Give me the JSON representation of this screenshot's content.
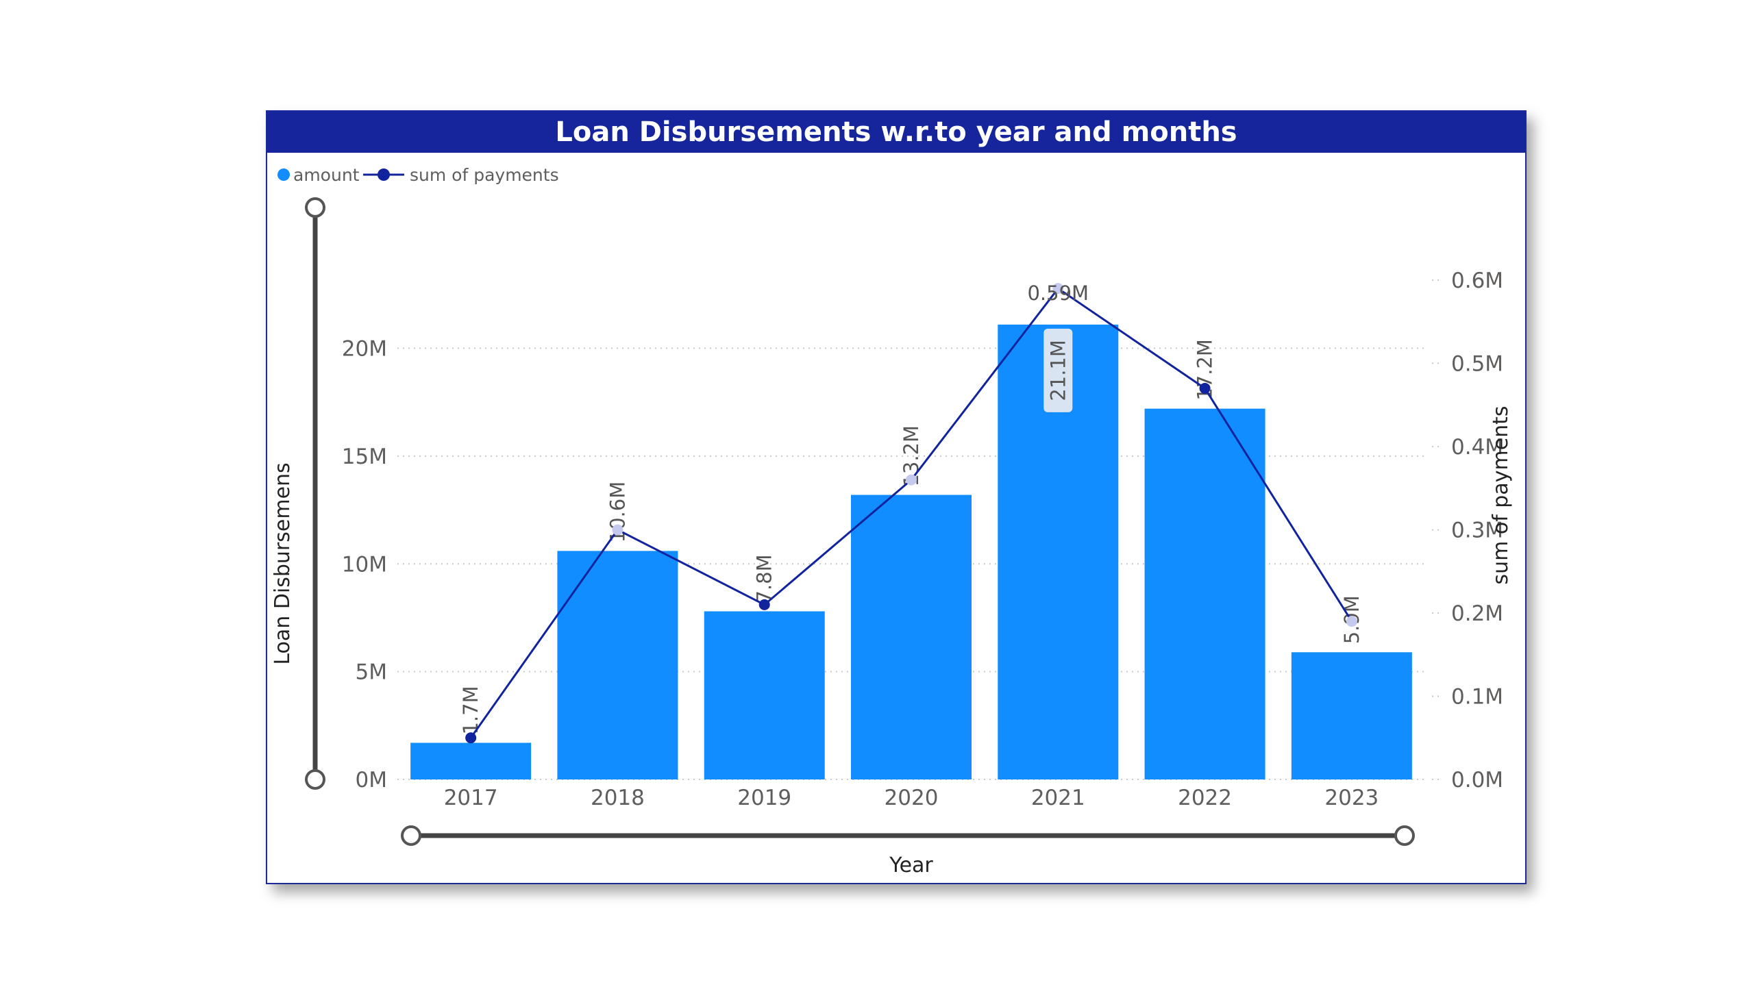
{
  "chart_data": {
    "type": "bar",
    "title": "Loan Disbursements w.r.to year and months",
    "xlabel": "Year",
    "ylabel": "Loan Disbursemens",
    "y2label": "sum of payments",
    "categories": [
      "2017",
      "2018",
      "2019",
      "2020",
      "2021",
      "2022",
      "2023"
    ],
    "series": [
      {
        "name": "amount",
        "kind": "bar",
        "axis": "left",
        "color": "#118dff",
        "values": [
          1.7,
          10.6,
          7.8,
          13.2,
          21.1,
          17.2,
          5.9
        ],
        "labels": [
          "1.7M",
          "10.6M",
          "7.8M",
          "13.2M",
          "21.1M",
          "17.2M",
          "5.9M"
        ]
      },
      {
        "name": "sum of payments",
        "kind": "line",
        "axis": "right",
        "color": "#12239e",
        "values": [
          0.05,
          0.3,
          0.21,
          0.36,
          0.59,
          0.47,
          0.19
        ],
        "labels": [
          "",
          "",
          "",
          "",
          "0.59M",
          "",
          ""
        ]
      }
    ],
    "y_axis": {
      "ticks": [
        0,
        5,
        10,
        15,
        20
      ],
      "tick_labels": [
        "0M",
        "5M",
        "10M",
        "15M",
        "20M"
      ],
      "ylim": [
        0,
        22.5
      ]
    },
    "y2_axis": {
      "ticks": [
        0,
        0.1,
        0.2,
        0.3,
        0.4,
        0.5,
        0.6
      ],
      "tick_labels": [
        "0.0M",
        "0.1M",
        "0.2M",
        "0.3M",
        "0.4M",
        "0.5M",
        "0.6M"
      ],
      "ylim": [
        0,
        0.6
      ]
    },
    "grid": "dotted horizontal",
    "legend": "top-left"
  }
}
